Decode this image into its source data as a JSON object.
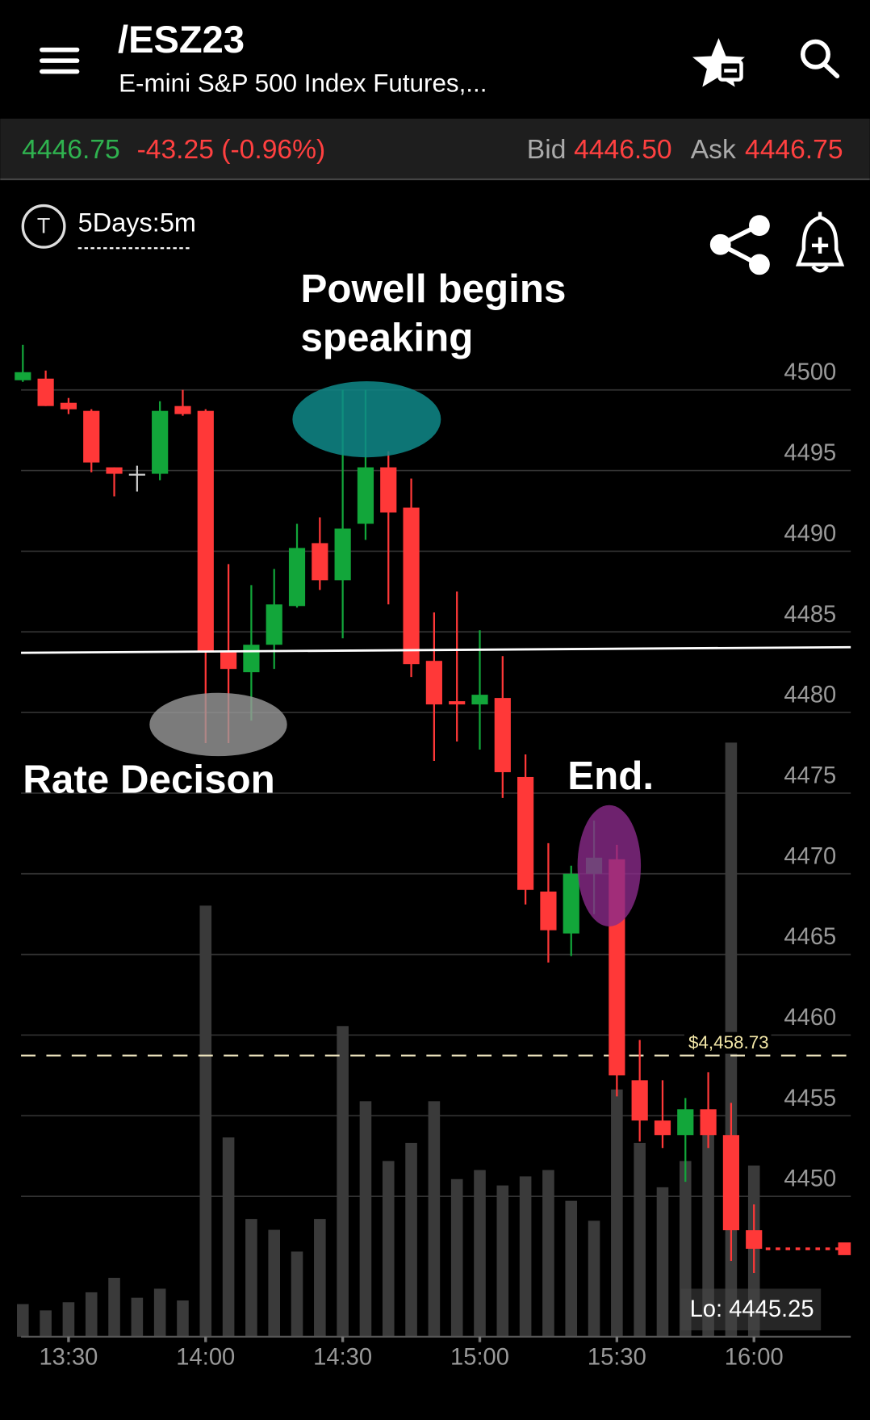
{
  "header": {
    "title": "/ESZ23",
    "subtitle": "E-mini S&P 500 Index Futures,..."
  },
  "quote": {
    "last": "4446.75",
    "change": "-43.25 (-0.96%)",
    "bid_label": "Bid",
    "bid": "4446.50",
    "ask_label": "Ask",
    "ask": "4446.75"
  },
  "toolbar": {
    "icon_letter": "T",
    "timeframe": "5Days:5m"
  },
  "chart_data": {
    "type": "candlestick",
    "categories": [
      null,
      null,
      "13:30",
      null,
      null,
      null,
      null,
      null,
      "14:00",
      null,
      null,
      null,
      null,
      null,
      "14:30",
      null,
      null,
      null,
      null,
      null,
      "15:00",
      null,
      null,
      null,
      null,
      null,
      "15:30",
      null,
      null,
      null,
      null,
      null,
      "16:00"
    ],
    "open": [
      4500.6,
      4500.7,
      4499.2,
      4498.7,
      4495.2,
      4494.8,
      4494.8,
      4499.0,
      4498.7,
      4483.8,
      4482.5,
      4484.2,
      4486.6,
      4490.5,
      4488.2,
      4491.7,
      4495.2,
      4492.7,
      4483.2,
      4480.7,
      4480.5,
      4480.9,
      4476.0,
      4468.9,
      4466.3,
      4470.0,
      4470.9,
      4457.2,
      4454.7,
      4453.8,
      4455.4,
      4453.8,
      4447.9
    ],
    "high": [
      4502.8,
      4501.2,
      4499.5,
      4498.8,
      4495.2,
      4495.3,
      4499.3,
      4500.0,
      4498.8,
      4489.2,
      4487.9,
      4488.9,
      4491.7,
      4492.1,
      4500.0,
      4500.0,
      4496.2,
      4494.5,
      4486.2,
      4487.5,
      4485.1,
      4483.5,
      4477.4,
      4471.9,
      4470.5,
      4473.3,
      4471.8,
      4459.7,
      4457.2,
      4456.1,
      4457.7,
      4455.8,
      4449.5
    ],
    "low": [
      4500.5,
      4499.0,
      4498.5,
      4494.9,
      4493.4,
      4493.7,
      4494.4,
      4498.4,
      4478.1,
      4478.1,
      4479.5,
      4482.7,
      4486.5,
      4487.6,
      4484.6,
      4490.7,
      4486.7,
      4482.2,
      4477.0,
      4478.2,
      4477.7,
      4474.7,
      4468.1,
      4464.5,
      4464.9,
      4467.5,
      4456.2,
      4453.4,
      4453.0,
      4450.9,
      4453.0,
      4446.0,
      4445.25
    ],
    "close": [
      4501.1,
      4499.0,
      4498.8,
      4495.5,
      4494.8,
      4494.8,
      4498.7,
      4498.5,
      4483.8,
      4482.7,
      4484.2,
      4486.7,
      4490.2,
      4488.2,
      4491.4,
      4495.2,
      4492.4,
      4483.0,
      4480.5,
      4480.5,
      4481.1,
      4476.3,
      4469.0,
      4466.5,
      4470.0,
      4471.0,
      4457.5,
      4454.7,
      4453.8,
      4455.4,
      4453.8,
      4447.9,
      4446.75
    ],
    "volume": [
      36,
      29,
      38,
      49,
      65,
      43,
      53,
      40,
      476,
      220,
      130,
      118,
      94,
      130,
      343,
      260,
      194,
      214,
      260,
      174,
      184,
      167,
      177,
      184,
      150,
      128,
      273,
      214,
      165,
      194,
      224,
      656,
      189
    ],
    "up_color": "#12a63a",
    "down_color": "#ff3838",
    "flat_color": "#cccccc",
    "volume_color": "#3a3a3a",
    "ylim": [
      4441.3,
      4503.4
    ],
    "yticks": [
      4450,
      4455,
      4460,
      4465,
      4470,
      4475,
      4480,
      4485,
      4490,
      4495,
      4500
    ],
    "grid": true,
    "trend_line": {
      "start": 4483.7,
      "end": 4484.05
    },
    "price_line": {
      "value": 4458.73,
      "label": "$4,458.73"
    },
    "lo_label": "Lo: 4445.25",
    "annotations": [
      {
        "lines": [
          "Powell begins",
          "speaking"
        ]
      },
      {
        "lines": [
          "Rate Decison"
        ]
      },
      {
        "lines": [
          "End."
        ]
      }
    ]
  }
}
